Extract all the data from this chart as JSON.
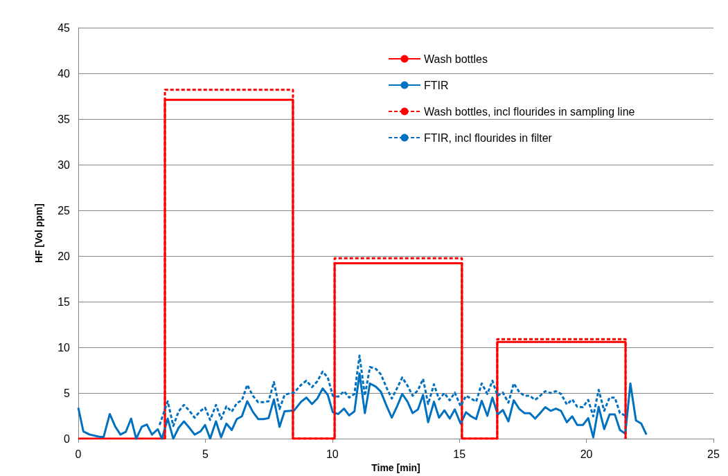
{
  "chart_data": {
    "type": "line",
    "xlabel": "Time [min]",
    "ylabel": "HF [Vol ppm]",
    "xlim": [
      0,
      25
    ],
    "xticks": [
      0,
      5,
      10,
      15,
      20,
      25
    ],
    "ylim": [
      0,
      45
    ],
    "yticks": [
      0,
      5,
      10,
      15,
      20,
      25,
      30,
      35,
      40,
      45
    ],
    "grid": "y",
    "legend": "top right",
    "marker": "none",
    "series": [
      {
        "name": "Wash bottles",
        "color": "#ff0000",
        "line_style": "solid",
        "x": [
          0,
          3.41,
          3.41,
          8.45,
          8.45,
          10.09,
          10.09,
          15.1,
          15.1,
          16.49,
          16.49,
          21.54,
          21.54
        ],
        "values": [
          0,
          0,
          37.1,
          37.1,
          0,
          0,
          19.2,
          19.2,
          0,
          0,
          10.6,
          10.6,
          0
        ]
      },
      {
        "name": "FTIR",
        "color": "#0070c0",
        "line_style": "solid",
        "x": [
          0,
          0.2,
          0.45,
          0.86,
          1.0,
          1.24,
          1.46,
          1.66,
          1.87,
          2.08,
          2.28,
          2.5,
          2.7,
          2.9,
          3.13,
          3.29,
          3.52,
          3.74,
          3.95,
          4.16,
          4.37,
          4.58,
          4.81,
          4.99,
          5.19,
          5.42,
          5.62,
          5.83,
          6.04,
          6.24,
          6.44,
          6.65,
          6.87,
          7.08,
          7.29,
          7.49,
          7.7,
          7.92,
          8.12,
          8.35,
          8.5,
          8.77,
          8.98,
          9.2,
          9.41,
          9.62,
          9.82,
          10.02,
          10.23,
          10.46,
          10.66,
          10.87,
          11.07,
          11.28,
          11.48,
          11.71,
          11.91,
          12.14,
          12.34,
          12.55,
          12.75,
          12.96,
          13.16,
          13.37,
          13.57,
          13.77,
          14.0,
          14.2,
          14.41,
          14.62,
          14.82,
          15.05,
          15.26,
          15.46,
          15.66,
          15.88,
          16.1,
          16.3,
          16.51,
          16.71,
          16.93,
          17.14,
          17.36,
          17.56,
          17.77,
          17.98,
          18.18,
          18.38,
          18.59,
          18.8,
          19.0,
          19.23,
          19.44,
          19.64,
          19.86,
          20.07,
          20.27,
          20.48,
          20.7,
          20.91,
          21.12,
          21.32,
          21.53,
          21.73,
          21.95,
          22.16,
          22.36
        ],
        "values": [
          3.4,
          0.8,
          0.45,
          0.2,
          0.2,
          2.7,
          1.3,
          0.45,
          0.75,
          2.2,
          0,
          1.3,
          1.55,
          0.45,
          1.05,
          0,
          2.2,
          0,
          1.2,
          1.9,
          1.2,
          0.45,
          0.8,
          1.5,
          0,
          1.9,
          0.15,
          1.65,
          0.95,
          2.15,
          2.45,
          4.1,
          2.95,
          2.15,
          2.15,
          2.25,
          4.3,
          1.3,
          3.0,
          3.05,
          3.1,
          4.05,
          4.5,
          3.8,
          4.4,
          5.5,
          4.8,
          2.9,
          2.7,
          3.3,
          2.55,
          3.0,
          7.15,
          2.8,
          6.05,
          5.7,
          5.15,
          3.55,
          2.3,
          3.55,
          4.9,
          4.05,
          2.8,
          3.2,
          4.8,
          1.8,
          4.05,
          2.3,
          3.1,
          2.2,
          3.2,
          1.65,
          2.9,
          2.45,
          2.15,
          4.15,
          2.5,
          4.5,
          2.65,
          3.15,
          1.9,
          4.2,
          3.25,
          2.8,
          2.8,
          2.2,
          2.8,
          3.45,
          3.05,
          3.3,
          3.05,
          1.8,
          2.45,
          1.5,
          1.5,
          2.25,
          0.15,
          3.5,
          1.05,
          2.65,
          2.65,
          0.95,
          0.55,
          6.05,
          2.0,
          1.65,
          0.45
        ]
      },
      {
        "name": "Wash bottles, incl flourides in sampling line",
        "color": "#ff0000",
        "line_style": "dashed",
        "x": [
          3.41,
          3.41,
          8.45,
          8.45,
          10.09,
          10.09,
          15.1,
          15.1,
          16.49,
          16.49,
          21.54,
          21.54
        ],
        "values": [
          0,
          38.2,
          38.2,
          0,
          0,
          19.75,
          19.75,
          0,
          0,
          10.9,
          10.9,
          0
        ]
      },
      {
        "name": "FTIR, incl flourides in filter",
        "color": "#0070c0",
        "line_style": "dashed",
        "x": [
          3.2,
          3.52,
          3.74,
          3.95,
          4.16,
          4.36,
          4.58,
          4.79,
          4.99,
          5.19,
          5.42,
          5.62,
          5.83,
          6.04,
          6.24,
          6.44,
          6.65,
          6.87,
          7.08,
          7.29,
          7.49,
          7.7,
          7.92,
          8.12,
          8.35,
          8.5,
          8.77,
          8.98,
          9.2,
          9.41,
          9.62,
          9.82,
          10.02,
          10.23,
          10.46,
          10.66,
          10.87,
          11.07,
          11.28,
          11.48,
          11.71,
          11.91,
          12.14,
          12.34,
          12.55,
          12.75,
          12.96,
          13.16,
          13.37,
          13.57,
          13.77,
          14.0,
          14.2,
          14.41,
          14.62,
          14.82,
          15.05,
          15.26,
          15.46,
          15.66,
          15.88,
          16.1,
          16.3,
          16.5,
          16.71,
          16.93,
          17.14,
          17.36,
          17.56,
          17.77,
          17.98,
          18.18,
          18.38,
          18.59,
          18.8,
          19.0,
          19.23,
          19.44,
          19.64,
          19.86,
          20.07,
          20.27,
          20.48,
          20.7,
          20.91,
          21.12,
          21.32,
          21.53
        ],
        "values": [
          1.5,
          4.1,
          1.4,
          3.0,
          3.7,
          3.1,
          2.3,
          3.0,
          3.4,
          2.05,
          3.7,
          2.15,
          3.55,
          2.95,
          3.9,
          4.2,
          5.9,
          4.7,
          4.0,
          4.0,
          4.1,
          6.2,
          3.25,
          4.8,
          5.0,
          5.05,
          5.9,
          6.35,
          5.65,
          6.3,
          7.35,
          6.7,
          4.7,
          4.6,
          5.2,
          4.5,
          4.9,
          9.1,
          4.7,
          7.85,
          7.65,
          7.05,
          5.55,
          4.4,
          5.55,
          6.7,
          5.8,
          4.7,
          5.3,
          6.55,
          3.8,
          5.95,
          4.3,
          5.0,
          4.2,
          5.05,
          3.55,
          4.7,
          4.4,
          4.05,
          6.05,
          4.9,
          6.35,
          4.7,
          5.05,
          3.95,
          6.05,
          5.1,
          4.7,
          4.7,
          4.25,
          4.7,
          5.2,
          5.0,
          5.2,
          4.9,
          3.75,
          4.3,
          3.5,
          3.45,
          4.25,
          2.45,
          5.35,
          3.05,
          4.5,
          4.5,
          2.8,
          2.55
        ]
      }
    ]
  }
}
